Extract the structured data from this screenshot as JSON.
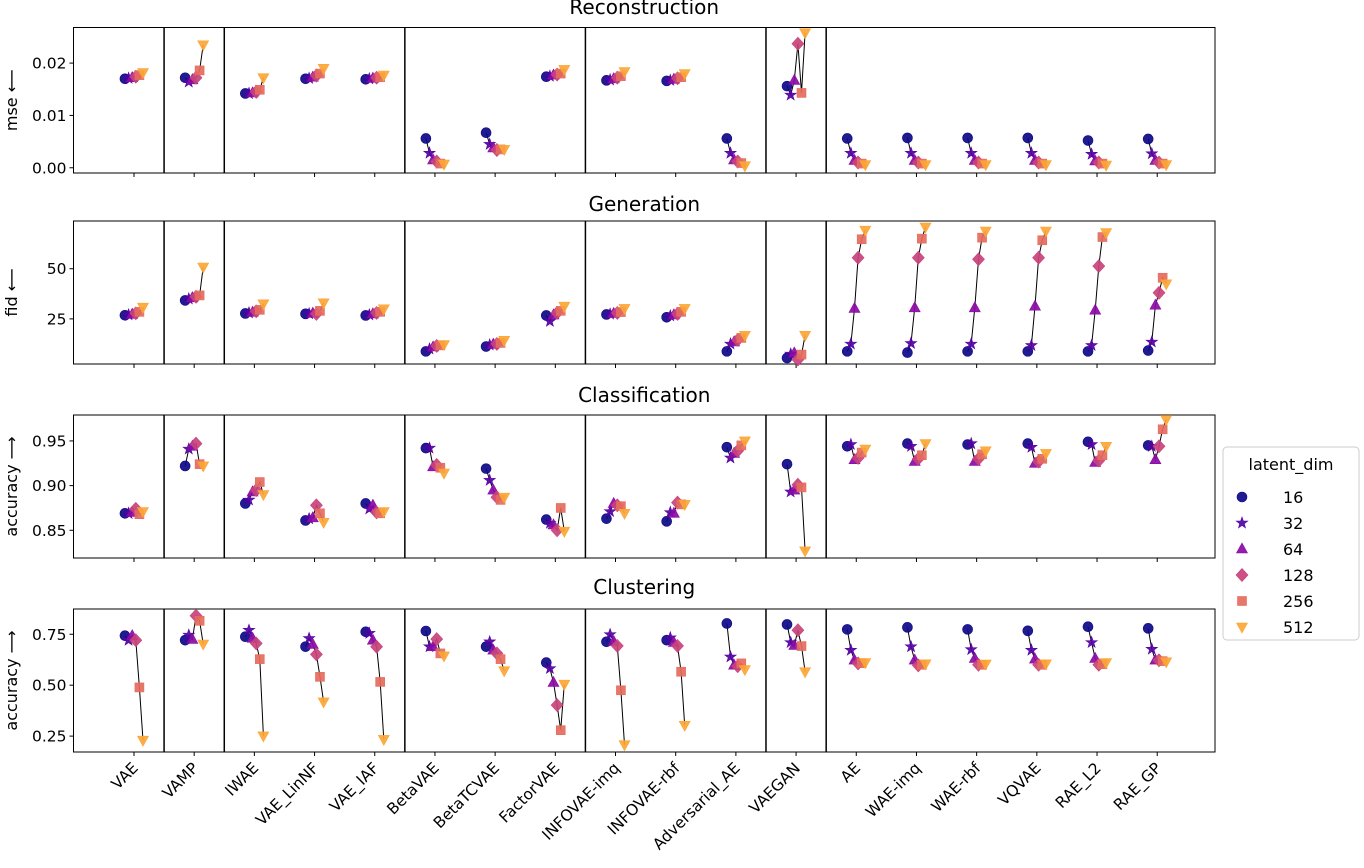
{
  "chart_data": {
    "type": "scatter",
    "categories": [
      "VAE",
      "VAMP",
      "IWAE",
      "VAE_LinNF",
      "VAE_IAF",
      "BetaVAE",
      "BetaTCVAE",
      "FactorVAE",
      "INFOVAE-imq",
      "INFOVAE-rbf",
      "Adversarial_AE",
      "VAEGAN",
      "AE",
      "WAE-imq",
      "WAE-rbf",
      "VQVAE",
      "RAE_L2",
      "RAE_GP"
    ],
    "group_boundaries": [
      0.5,
      1.5,
      4.5,
      7.5,
      10.5,
      11.5
    ],
    "legend": {
      "title": "latent_dim",
      "placement": "right"
    },
    "series_styles": [
      {
        "name": "16",
        "marker": "circle",
        "color": "#0d0887"
      },
      {
        "name": "32",
        "marker": "star",
        "color": "#5402a3"
      },
      {
        "name": "64",
        "marker": "triangle-up",
        "color": "#8b0aa5"
      },
      {
        "name": "128",
        "marker": "diamond",
        "color": "#c8437b"
      },
      {
        "name": "256",
        "marker": "square",
        "color": "#e56b5d"
      },
      {
        "name": "512",
        "marker": "triangle-down",
        "color": "#fca636"
      }
    ],
    "connecting_line_color": "#000000",
    "grid": false,
    "panels": [
      {
        "title": "Reconstruction",
        "ylabel": "mse ⟵",
        "ylim": [
          -0.001,
          0.0268
        ],
        "yticks": [
          0,
          0.01,
          0.02
        ],
        "ytick_labels": [
          "0.00",
          "0.01",
          "0.02"
        ],
        "series": [
          {
            "name": "16",
            "values": [
              0.017,
              0.0172,
              0.0142,
              0.017,
              0.0169,
              0.0056,
              0.0067,
              0.0174,
              0.0167,
              0.0166,
              0.0056,
              0.0156,
              0.0056,
              0.0057,
              0.0057,
              0.0057,
              0.0052,
              0.0055
            ]
          },
          {
            "name": "32",
            "values": [
              0.0171,
              0.0164,
              0.0142,
              0.0171,
              0.017,
              0.0028,
              0.0045,
              0.0175,
              0.0168,
              0.0167,
              0.0028,
              0.0139,
              0.0028,
              0.0028,
              0.0028,
              0.0028,
              0.0026,
              0.0027
            ]
          },
          {
            "name": "64",
            "values": [
              0.0172,
              0.0168,
              0.0143,
              0.0173,
              0.0171,
              0.0015,
              0.0038,
              0.0177,
              0.017,
              0.0169,
              0.0015,
              0.0167,
              0.0014,
              0.0014,
              0.0014,
              0.0014,
              0.0013,
              0.0014
            ]
          },
          {
            "name": "128",
            "values": [
              0.0174,
              0.0172,
              0.0145,
              0.0176,
              0.0172,
              0.0012,
              0.0034,
              0.0178,
              0.0172,
              0.0171,
              0.0012,
              0.0237,
              0.001,
              0.001,
              0.001,
              0.001,
              0.001,
              0.001
            ]
          },
          {
            "name": "256",
            "values": [
              0.0177,
              0.0186,
              0.0149,
              0.018,
              0.0173,
              0.0008,
              0.0035,
              0.018,
              0.0175,
              0.0173,
              0.0009,
              0.0143,
              0.0008,
              0.0008,
              0.0008,
              0.0008,
              0.0008,
              0.0008
            ]
          },
          {
            "name": "512",
            "values": [
              0.0182,
              0.0235,
              0.0172,
              0.019,
              0.0177,
              0.0007,
              0.0035,
              0.0188,
              0.0184,
              0.018,
              0.0004,
              0.0258,
              0.0006,
              0.0006,
              0.0006,
              0.0006,
              0.0005,
              0.0006
            ]
          }
        ]
      },
      {
        "title": "Generation",
        "ylabel": "fid ⟵",
        "ylim": [
          2.5,
          73.8
        ],
        "yticks": [
          25,
          50
        ],
        "ytick_labels": [
          "25",
          "50"
        ],
        "series": [
          {
            "name": "16",
            "values": [
              26.8,
              34.2,
              27.7,
              27.5,
              26.7,
              8.8,
              11.2,
              26.7,
              27.2,
              25.8,
              8.8,
              5.5,
              8.8,
              8.2,
              8.8,
              8.8,
              8.8,
              9.2
            ]
          },
          {
            "name": "32",
            "values": [
              27,
              35,
              28,
              27.6,
              27,
              10,
              12,
              23.8,
              27.4,
              26.5,
              12.5,
              7.5,
              12.5,
              12.8,
              12.5,
              11.8,
              11.8,
              13.5
            ]
          },
          {
            "name": "64",
            "values": [
              27.3,
              35.5,
              28.3,
              27.8,
              27.5,
              11,
              12.3,
              27,
              27.7,
              27,
              13.5,
              8,
              30.2,
              30.5,
              30.5,
              31.3,
              29.3,
              31.8
            ]
          },
          {
            "name": "128",
            "values": [
              27.8,
              36,
              28.8,
              27.5,
              28,
              11.5,
              12.5,
              28,
              28,
              27.5,
              14.5,
              4.7,
              55.5,
              55.5,
              54.7,
              55.5,
              51.3,
              38
            ]
          },
          {
            "name": "256",
            "values": [
              28.5,
              36.7,
              29.5,
              29,
              28.5,
              11.8,
              13,
              29,
              28.4,
              28.5,
              15.5,
              7.2,
              64.7,
              65,
              65.5,
              64.2,
              65.8,
              45.5
            ]
          },
          {
            "name": "512",
            "values": [
              30.8,
              50.8,
              32.5,
              33,
              30,
              12.2,
              14.3,
              31.3,
              30.2,
              30.2,
              16.8,
              16.8,
              69.2,
              70.8,
              68.8,
              68.8,
              68,
              42.5
            ]
          }
        ]
      },
      {
        "title": "Classification",
        "ylabel": "accuracy ⟶",
        "ylim": [
          0.819,
          0.979
        ],
        "yticks": [
          0.85,
          0.9,
          0.95
        ],
        "ytick_labels": [
          "0.85",
          "0.90",
          "0.95"
        ],
        "series": [
          {
            "name": "16",
            "values": [
              0.869,
              0.922,
              0.88,
              0.861,
              0.88,
              0.942,
              0.919,
              0.862,
              0.863,
              0.86,
              0.943,
              0.924,
              0.944,
              0.947,
              0.946,
              0.947,
              0.949,
              0.945
            ]
          },
          {
            "name": "32",
            "values": [
              0.869,
              0.941,
              0.884,
              0.863,
              0.874,
              0.942,
              0.906,
              0.858,
              0.871,
              0.87,
              0.931,
              0.893,
              0.946,
              0.944,
              0.947,
              0.943,
              0.946,
              0.944
            ]
          },
          {
            "name": "64",
            "values": [
              0.87,
              0.944,
              0.893,
              0.864,
              0.878,
              0.921,
              0.895,
              0.856,
              0.88,
              0.869,
              0.936,
              0.895,
              0.929,
              0.927,
              0.927,
              0.925,
              0.926,
              0.929
            ]
          },
          {
            "name": "128",
            "values": [
              0.874,
              0.947,
              0.895,
              0.878,
              0.87,
              0.923,
              0.887,
              0.85,
              0.878,
              0.881,
              0.939,
              0.901,
              0.931,
              0.93,
              0.93,
              0.927,
              0.928,
              0.944
            ]
          },
          {
            "name": "256",
            "values": [
              0.868,
              0.924,
              0.904,
              0.869,
              0.869,
              0.92,
              0.884,
              0.875,
              0.877,
              0.879,
              0.945,
              0.898,
              0.937,
              0.934,
              0.935,
              0.93,
              0.934,
              0.963
            ]
          },
          {
            "name": "512",
            "values": [
              0.871,
              0.922,
              0.89,
              0.859,
              0.871,
              0.914,
              0.887,
              0.849,
              0.869,
              0.879,
              0.95,
              0.827,
              0.941,
              0.947,
              0.939,
              0.936,
              0.944,
              0.974
            ]
          }
        ]
      },
      {
        "title": "Clustering",
        "ylabel": "accuracy ⟶",
        "ylim": [
          0.172,
          0.874
        ],
        "yticks": [
          0.25,
          0.5,
          0.75
        ],
        "ytick_labels": [
          "0.25",
          "0.50",
          "0.75"
        ],
        "series": [
          {
            "name": "16",
            "values": [
              0.743,
              0.721,
              0.738,
              0.689,
              0.762,
              0.766,
              0.689,
              0.611,
              0.713,
              0.721,
              0.803,
              0.798,
              0.774,
              0.784,
              0.774,
              0.767,
              0.787,
              0.779
            ]
          },
          {
            "name": "32",
            "values": [
              0.721,
              0.746,
              0.77,
              0.73,
              0.755,
              0.689,
              0.713,
              0.582,
              0.749,
              0.733,
              0.639,
              0.71,
              0.672,
              0.689,
              0.675,
              0.672,
              0.71,
              0.677
            ]
          },
          {
            "name": "64",
            "values": [
              0.743,
              0.725,
              0.73,
              0.7,
              0.721,
              0.689,
              0.672,
              0.513,
              0.715,
              0.71,
              0.598,
              0.695,
              0.623,
              0.623,
              0.631,
              0.628,
              0.631,
              0.623
            ]
          },
          {
            "name": "128",
            "values": [
              0.721,
              0.841,
              0.705,
              0.651,
              0.689,
              0.726,
              0.656,
              0.402,
              0.693,
              0.693,
              0.593,
              0.77,
              0.607,
              0.597,
              0.6,
              0.6,
              0.6,
              0.622
            ]
          },
          {
            "name": "256",
            "values": [
              0.489,
              0.816,
              0.628,
              0.541,
              0.516,
              0.656,
              0.628,
              0.279,
              0.475,
              0.566,
              0.607,
              0.692,
              0.608,
              0.6,
              0.6,
              0.6,
              0.603,
              0.618
            ]
          },
          {
            "name": "512",
            "values": [
              0.23,
              0.702,
              0.251,
              0.418,
              0.234,
              0.644,
              0.571,
              0.505,
              0.208,
              0.303,
              0.577,
              0.566,
              0.611,
              0.605,
              0.604,
              0.605,
              0.611,
              0.615
            ]
          }
        ]
      }
    ]
  }
}
